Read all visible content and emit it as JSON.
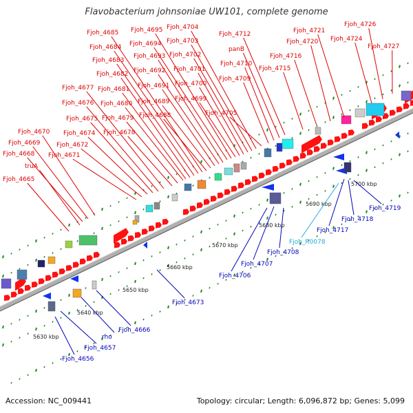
{
  "title": "Flavobacterium johnsoniae UW101, complete genome",
  "footer": {
    "accession": "Accession: NC_009441",
    "summary": "Topology: circular; Length: 6,096,872 bp; Genes: 5,099"
  },
  "colors": {
    "plus_strand_label": "#dd0000",
    "minus_strand_label": "#0000bb",
    "rna_label": "#22aadd",
    "gene_plus": "#ff1111",
    "gene_minus": "#1133ee",
    "backbone": "#b0b0b0",
    "tick": "#228822"
  },
  "scale_labels": [
    "5630 kbp",
    "5640 kbp",
    "5650 kbp",
    "5660 kbp",
    "5670 kbp",
    "5680 kbp",
    "5690 kbp",
    "5700 kbp"
  ],
  "plus_labels": [
    "Fjoh_4665",
    "truA",
    "Fjoh_4668",
    "Fjoh_4669",
    "Fjoh_4670",
    "Fjoh_4671",
    "Fjoh_4672",
    "Fjoh_4674",
    "Fjoh_4675",
    "Fjoh_4676",
    "Fjoh_4677",
    "Fjoh_4678",
    "Fjoh_4679",
    "Fjoh_4680",
    "Fjoh_4681",
    "Fjoh_4682",
    "Fjoh_4683",
    "Fjoh_4684",
    "Fjoh_4685",
    "Fjoh_4688",
    "Fjoh_4689",
    "Fjoh_4691",
    "Fjoh_4692",
    "Fjoh_4693",
    "Fjoh_4694",
    "Fjoh_4695",
    "Fjoh_4699",
    "Fjoh_4700",
    "Fjoh_4701",
    "Fjoh_4702",
    "Fjoh_4703",
    "Fjoh_4704",
    "Fjoh_4705",
    "Fjoh_4709",
    "Fjoh_4710",
    "panB",
    "Fjoh_4712",
    "Fjoh_4715",
    "Fjoh_4716",
    "Fjoh_4720",
    "Fjoh_4721",
    "Fjoh_4724",
    "Fjoh_4726",
    "Fjoh_4727"
  ],
  "minus_labels": [
    "Fjoh_4656",
    "Fjoh_4657",
    "rho",
    "Fjoh_4666",
    "Fjoh_4673",
    "Fjoh_4706",
    "Fjoh_4707",
    "Fjoh_4708",
    "Fjoh_R0078",
    "Fjoh_4717",
    "Fjoh_4718",
    "Fjoh_4719"
  ]
}
